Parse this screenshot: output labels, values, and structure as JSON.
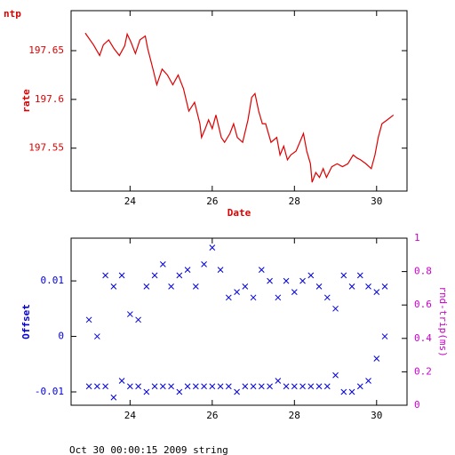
{
  "chart_data": [
    {
      "type": "line",
      "title": "ntp",
      "xlabel": "Date",
      "ylabel": "rate",
      "color": "#dd0000",
      "x": [
        22.91,
        23.11,
        23.26,
        23.35,
        23.48,
        23.61,
        23.74,
        23.87,
        23.93,
        24.02,
        24.13,
        24.24,
        24.37,
        24.43,
        24.57,
        24.65,
        24.78,
        24.91,
        25.04,
        25.17,
        25.3,
        25.43,
        25.57,
        25.7,
        25.74,
        25.83,
        25.91,
        26.0,
        26.09,
        26.22,
        26.3,
        26.43,
        26.52,
        26.61,
        26.74,
        26.87,
        26.96,
        27.04,
        27.13,
        27.22,
        27.3,
        27.43,
        27.57,
        27.65,
        27.74,
        27.83,
        27.91,
        28.04,
        28.13,
        28.22,
        28.3,
        28.39,
        28.43,
        28.52,
        28.61,
        28.7,
        28.78,
        28.91,
        29.04,
        29.17,
        29.3,
        29.43,
        29.52,
        29.61,
        29.74,
        29.87,
        29.96,
        30.04,
        30.13,
        30.26,
        30.41
      ],
      "values": [
        197.668,
        197.656,
        197.645,
        197.656,
        197.661,
        197.652,
        197.645,
        197.655,
        197.667,
        197.659,
        197.647,
        197.661,
        197.665,
        197.652,
        197.629,
        197.615,
        197.631,
        197.625,
        197.615,
        197.625,
        197.611,
        197.588,
        197.597,
        197.575,
        197.561,
        197.57,
        197.579,
        197.57,
        197.584,
        197.561,
        197.556,
        197.565,
        197.575,
        197.561,
        197.556,
        197.579,
        197.602,
        197.606,
        197.588,
        197.575,
        197.575,
        197.556,
        197.561,
        197.543,
        197.552,
        197.538,
        197.543,
        197.547,
        197.556,
        197.565,
        197.547,
        197.534,
        197.515,
        197.525,
        197.52,
        197.529,
        197.52,
        197.531,
        197.534,
        197.531,
        197.534,
        197.543,
        197.54,
        197.538,
        197.534,
        197.529,
        197.543,
        197.561,
        197.575,
        197.579,
        197.584
      ],
      "xlim": [
        22.565,
        30.74
      ],
      "ylim": [
        197.506,
        197.691
      ],
      "xticks": [
        24,
        26,
        28,
        30
      ],
      "yticks": [
        197.55,
        197.6,
        197.65
      ]
    },
    {
      "type": "scatter",
      "ylabel": "Offset",
      "y2label": "rnd-trip(ms)",
      "color": "#0000dd",
      "y2color": "#cc00cc",
      "x": [
        23.0,
        23.0,
        23.2,
        23.2,
        23.4,
        23.4,
        23.6,
        23.6,
        23.8,
        23.8,
        24.0,
        24.0,
        24.2,
        24.2,
        24.4,
        24.4,
        24.6,
        24.6,
        24.8,
        24.8,
        25.0,
        25.0,
        25.2,
        25.2,
        25.4,
        25.4,
        25.6,
        25.6,
        25.8,
        25.8,
        26.0,
        26.0,
        26.2,
        26.2,
        26.4,
        26.4,
        26.6,
        26.6,
        26.8,
        26.8,
        27.0,
        27.0,
        27.2,
        27.2,
        27.4,
        27.4,
        27.6,
        27.6,
        27.8,
        27.8,
        28.0,
        28.0,
        28.2,
        28.2,
        28.4,
        28.4,
        28.6,
        28.6,
        28.8,
        28.8,
        29.0,
        29.0,
        29.2,
        29.2,
        29.4,
        29.4,
        29.6,
        29.6,
        29.8,
        29.8,
        30.0,
        30.0,
        30.2,
        30.2
      ],
      "values": [
        0.003,
        -0.009,
        0.0,
        -0.009,
        0.011,
        -0.009,
        0.009,
        -0.011,
        0.011,
        -0.008,
        0.004,
        -0.009,
        0.003,
        -0.009,
        0.009,
        -0.01,
        0.011,
        -0.009,
        0.013,
        -0.009,
        0.009,
        -0.009,
        0.011,
        -0.01,
        0.012,
        -0.009,
        0.009,
        -0.009,
        0.013,
        -0.009,
        0.016,
        -0.009,
        0.012,
        -0.009,
        0.007,
        -0.009,
        0.008,
        -0.01,
        0.009,
        -0.009,
        0.007,
        -0.009,
        0.012,
        -0.009,
        0.01,
        -0.009,
        0.007,
        -0.008,
        0.01,
        -0.009,
        0.008,
        -0.009,
        0.01,
        -0.009,
        0.011,
        -0.009,
        0.009,
        -0.009,
        0.007,
        -0.009,
        0.005,
        -0.007,
        0.011,
        -0.01,
        0.009,
        -0.01,
        0.011,
        -0.009,
        0.009,
        -0.008,
        0.008,
        -0.004,
        0.009,
        0.0
      ],
      "xlim": [
        22.565,
        30.74
      ],
      "ylim": [
        -0.0124,
        0.0177
      ],
      "y2lim": [
        0,
        1
      ],
      "xticks": [
        24,
        26,
        28,
        30
      ],
      "yticks": [
        -0.01,
        0,
        0.01
      ],
      "y2ticks": [
        0,
        0.2,
        0.4,
        0.6,
        0.8,
        1
      ]
    }
  ],
  "footer": "Oct 30 00:00:15 2009 string"
}
